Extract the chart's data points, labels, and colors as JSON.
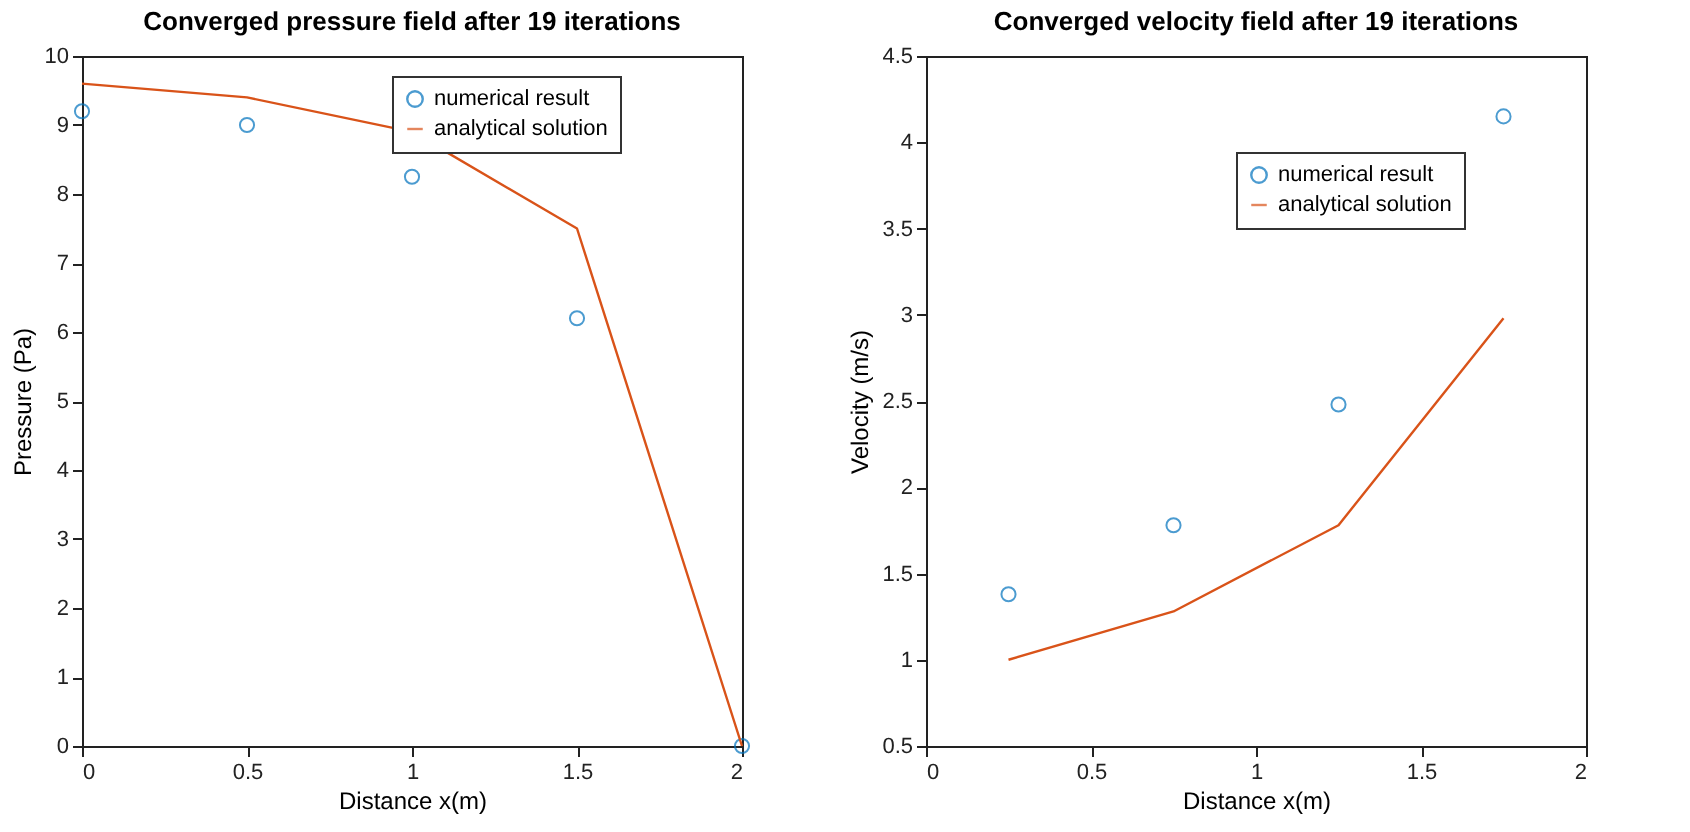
{
  "chart_data": [
    {
      "type": "line",
      "title": "Converged pressure field after 19 iterations",
      "xlabel": "Distance x(m)",
      "ylabel": "Pressure (Pa)",
      "xlim": [
        0,
        2
      ],
      "xticks": [
        0,
        0.5,
        1,
        1.5,
        2
      ],
      "ylim": [
        0,
        10
      ],
      "yticks": [
        0,
        1,
        2,
        3,
        4,
        5,
        6,
        7,
        8,
        9,
        10
      ],
      "grid": false,
      "legend": "top right",
      "series": [
        {
          "name": "numerical result",
          "type": "scatter",
          "marker": "circle",
          "color": "#0072bd",
          "x": [
            0,
            0.5,
            1,
            1.5,
            2
          ],
          "values": [
            9.2,
            9.0,
            8.25,
            6.2,
            0
          ]
        },
        {
          "name": "analytical solution",
          "line_style": "solid",
          "color": "#d95319",
          "x": [
            0,
            0.5,
            1,
            1.5,
            2
          ],
          "values": [
            9.6,
            9.4,
            8.9,
            7.5,
            0
          ]
        }
      ]
    },
    {
      "type": "line",
      "title": "Converged velocity field after 19 iterations",
      "xlabel": "Distance x(m)",
      "ylabel": "Velocity (m/s)",
      "xlim": [
        0,
        2
      ],
      "xticks": [
        0,
        0.5,
        1,
        1.5,
        2
      ],
      "ylim": [
        0.5,
        4.5
      ],
      "yticks": [
        0.5,
        1,
        1.5,
        2,
        2.5,
        3,
        3.5,
        4,
        4.5
      ],
      "grid": false,
      "legend": "top right",
      "series": [
        {
          "name": "numerical result",
          "type": "scatter",
          "marker": "circle",
          "color": "#0072bd",
          "x": [
            0.25,
            0.75,
            1.25,
            1.75
          ],
          "values": [
            1.38,
            1.78,
            2.48,
            4.15
          ]
        },
        {
          "name": "analytical solution",
          "line_style": "solid",
          "color": "#d95319",
          "x": [
            0.25,
            0.75,
            1.25,
            1.75
          ],
          "values": [
            1.0,
            1.28,
            1.78,
            2.98
          ]
        }
      ]
    }
  ]
}
